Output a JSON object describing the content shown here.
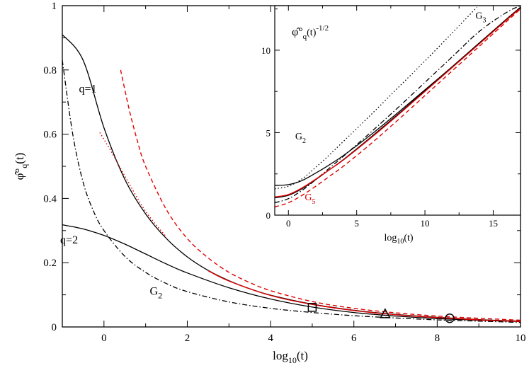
{
  "chart_data": [
    {
      "type": "line",
      "xlabel": "log10(t)",
      "ylabel": "φ̂°q(t)",
      "xlim": [
        -1,
        10
      ],
      "ylim": [
        0,
        1
      ],
      "xticks": [
        0,
        2,
        4,
        6,
        8,
        10
      ],
      "yticks": [
        0,
        0.2,
        0.4,
        0.6,
        0.8,
        1
      ],
      "tick_labels_x": [
        "0",
        "2",
        "4",
        "6",
        "8",
        "10"
      ],
      "tick_labels_y": [
        "0",
        "0.2",
        "0.4",
        "0.6",
        "0.8",
        "1"
      ],
      "grid": false,
      "series": [
        {
          "label": "q=1",
          "color": "#000000",
          "dash": "solid",
          "x": [
            -1,
            -0.5,
            0,
            0.5,
            1,
            1.5,
            2,
            2.5,
            3,
            3.5,
            4,
            5,
            6,
            7,
            8,
            9,
            10
          ],
          "y": [
            0.91,
            0.83,
            0.62,
            0.46,
            0.352,
            0.275,
            0.218,
            0.176,
            0.144,
            0.119,
            0.099,
            0.071,
            0.052,
            0.039,
            0.03,
            0.023,
            0.018
          ]
        },
        {
          "label": "q=2",
          "color": "#000000",
          "dash": "solid",
          "x": [
            -1,
            -0.5,
            0,
            0.5,
            1,
            1.5,
            2,
            3,
            4,
            5,
            6,
            7,
            8,
            9,
            10
          ],
          "y": [
            0.318,
            0.305,
            0.285,
            0.258,
            0.227,
            0.196,
            0.168,
            0.122,
            0.087,
            0.062,
            0.045,
            0.034,
            0.026,
            0.021,
            0.017
          ]
        },
        {
          "label": "G2",
          "color": "#000000",
          "dash": "dashdot",
          "x": [
            -1,
            -0.75,
            -0.5,
            -0.25,
            0,
            0.5,
            1,
            1.5,
            2,
            3,
            4,
            5,
            6,
            7,
            8,
            9,
            10
          ],
          "y": [
            0.83,
            0.6,
            0.45,
            0.36,
            0.3,
            0.22,
            0.17,
            0.135,
            0.11,
            0.078,
            0.058,
            0.045,
            0.035,
            0.028,
            0.022,
            0.018,
            0.014
          ]
        },
        {
          "label": "",
          "color": "#e00000",
          "dash": "dashed",
          "x": [
            0.4,
            0.6,
            0.8,
            1,
            1.5,
            2,
            2.5,
            3,
            3.5,
            4,
            5,
            6,
            7,
            8,
            9,
            10
          ],
          "y": [
            0.8,
            0.68,
            0.58,
            0.5,
            0.365,
            0.275,
            0.215,
            0.17,
            0.138,
            0.113,
            0.079,
            0.058,
            0.044,
            0.034,
            0.027,
            0.021
          ]
        },
        {
          "label": "",
          "color": "#e00000",
          "dash": "dotted",
          "x": [
            -0.1,
            0.2,
            0.5,
            1,
            1.5
          ],
          "y": [
            0.605,
            0.54,
            0.47,
            0.36,
            0.28
          ]
        },
        {
          "label": "",
          "color": "#e00000",
          "dash": "solid",
          "x": [
            2.5,
            3,
            4,
            5,
            6,
            7,
            8,
            9,
            10
          ],
          "y": [
            0.175,
            0.143,
            0.098,
            0.07,
            0.051,
            0.038,
            0.029,
            0.022,
            0.017
          ]
        }
      ],
      "markers": [
        {
          "shape": "square",
          "x": 5.0,
          "y": 0.061
        },
        {
          "shape": "triangle",
          "x": 6.75,
          "y": 0.04
        },
        {
          "shape": "circle",
          "x": 8.3,
          "y": 0.027
        }
      ],
      "annotations": [
        {
          "text": "q=1",
          "x": -0.6,
          "y": 0.73
        },
        {
          "text": "q=2",
          "x": -1.05,
          "y": 0.26
        },
        {
          "text": "G2",
          "x": 1.1,
          "y": 0.1
        }
      ]
    },
    {
      "type": "line",
      "inset": true,
      "xlabel": "log10(t)",
      "ylabel": "φ̂°q(t)^(-1/2)",
      "xlim": [
        -1,
        17
      ],
      "ylim": [
        0,
        12.7
      ],
      "xticks": [
        0,
        5,
        10,
        15
      ],
      "yticks": [
        0,
        5,
        10
      ],
      "tick_labels_x": [
        "0",
        "5",
        "10",
        "15"
      ],
      "tick_labels_y": [
        "0",
        "5",
        "10"
      ],
      "grid": false,
      "series": [
        {
          "label": "",
          "color": "#000000",
          "dash": "dotted",
          "x": [
            -1,
            0,
            1,
            2,
            3,
            4,
            6,
            8,
            10,
            12,
            13.8
          ],
          "y": [
            1.6,
            1.75,
            2.2,
            2.9,
            3.65,
            4.45,
            6.05,
            7.7,
            9.35,
            11.05,
            12.6
          ]
        },
        {
          "label": "G3",
          "color": "#000000",
          "dash": "dashdot",
          "x": [
            -1,
            0,
            1,
            2,
            3,
            4,
            6,
            8,
            10,
            12,
            14,
            16,
            17
          ],
          "y": [
            0.75,
            1.0,
            1.5,
            2.15,
            2.85,
            3.55,
            5.0,
            6.5,
            8.05,
            9.6,
            11.15,
            12.3,
            12.7
          ]
        },
        {
          "label": "",
          "color": "#000000",
          "dash": "solid",
          "x": [
            -1,
            0,
            1,
            2,
            3,
            4,
            6,
            8,
            10,
            12,
            14,
            16,
            17
          ],
          "y": [
            1.8,
            1.85,
            2.1,
            2.55,
            3.05,
            3.6,
            4.85,
            6.2,
            7.6,
            9.0,
            10.45,
            11.9,
            12.6
          ]
        },
        {
          "label": "",
          "color": "#000000",
          "dash": "solid",
          "x": [
            -1,
            0,
            1,
            2,
            3,
            4,
            6,
            8,
            10,
            12,
            14,
            16,
            17
          ],
          "y": [
            1.05,
            1.2,
            1.6,
            2.15,
            2.75,
            3.35,
            4.7,
            6.1,
            7.55,
            9.0,
            10.45,
            11.9,
            12.6
          ]
        },
        {
          "label": "",
          "color": "#e00000",
          "dash": "solid",
          "x": [
            -1,
            0,
            1,
            2,
            3,
            4,
            6,
            8,
            10,
            12,
            14,
            16,
            17
          ],
          "y": [
            1.1,
            1.25,
            1.65,
            2.18,
            2.75,
            3.33,
            4.65,
            6.05,
            7.5,
            8.95,
            10.4,
            11.85,
            12.55
          ]
        },
        {
          "label": "G5",
          "color": "#e00000",
          "dash": "dashed",
          "x": [
            -1,
            0,
            1,
            2,
            3,
            4,
            6,
            8,
            10,
            12,
            14,
            16,
            17
          ],
          "y": [
            0.5,
            0.75,
            1.2,
            1.75,
            2.35,
            2.95,
            4.3,
            5.75,
            7.25,
            8.75,
            10.25,
            11.75,
            12.5
          ]
        }
      ],
      "annotations": [
        {
          "text": "G3",
          "x": 13.7,
          "y": 11.9
        },
        {
          "text": "G2",
          "x": 0.5,
          "y": 4.6
        },
        {
          "text": "G5",
          "x": 1.2,
          "y": 0.9
        }
      ]
    }
  ]
}
